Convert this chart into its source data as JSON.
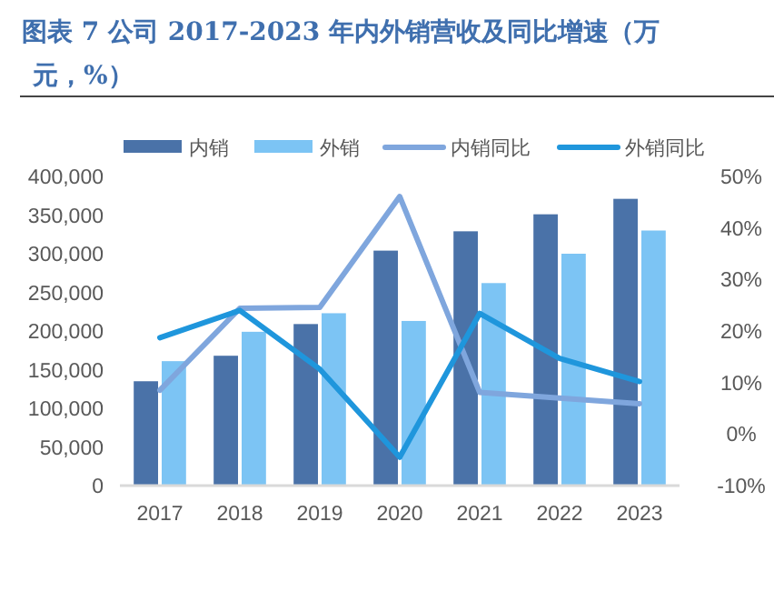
{
  "chart_data": {
    "type": "bar",
    "title": "图表 7 公司 2017-2023 年内外销营收及同比增速（万元，%）",
    "categories": [
      "2017",
      "2018",
      "2019",
      "2020",
      "2021",
      "2022",
      "2023"
    ],
    "series": [
      {
        "name": "内销",
        "color": "#4a72a8",
        "values": [
          135000,
          168000,
          209000,
          304000,
          329000,
          351000,
          371000
        ]
      },
      {
        "name": "外销",
        "color": "#7cc4f4",
        "values": [
          161000,
          199000,
          223000,
          213000,
          262000,
          300000,
          330000
        ]
      },
      {
        "name": "内销同比",
        "type": "line",
        "axis": "y2",
        "color": "#7fa6dd",
        "values": [
          8.5,
          24.4,
          24.6,
          46.1,
          8.1,
          7.0,
          5.9
        ]
      },
      {
        "name": "外销同比",
        "type": "line",
        "axis": "y2",
        "color": "#1f96dc",
        "values": [
          18.7,
          24.0,
          12.6,
          -4.5,
          23.4,
          14.7,
          10.2
        ]
      }
    ],
    "ylim": [
      0,
      400000
    ],
    "yticks": [
      {
        "value": 0,
        "label": "0"
      },
      {
        "value": 50000,
        "label": "50,000"
      },
      {
        "value": 100000,
        "label": "100,000"
      },
      {
        "value": 150000,
        "label": "150,000"
      },
      {
        "value": 200000,
        "label": "200,000"
      },
      {
        "value": 250000,
        "label": "250,000"
      },
      {
        "value": 300000,
        "label": "300,000"
      },
      {
        "value": 350000,
        "label": "350,000"
      },
      {
        "value": 400000,
        "label": "400,000"
      }
    ],
    "y2lim": [
      -10,
      50
    ],
    "y2ticks": [
      {
        "value": -10,
        "label": "-10%"
      },
      {
        "value": 0,
        "label": "0%"
      },
      {
        "value": 10,
        "label": "10%"
      },
      {
        "value": 20,
        "label": "20%"
      },
      {
        "value": 30,
        "label": "30%"
      },
      {
        "value": 40,
        "label": "40%"
      },
      {
        "value": 50,
        "label": "50%"
      }
    ],
    "grid": false,
    "legend": "top"
  }
}
